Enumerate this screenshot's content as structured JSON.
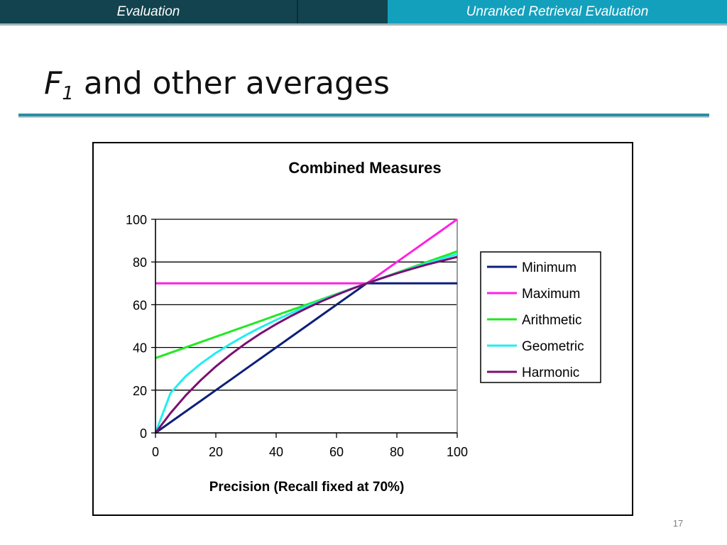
{
  "header": {
    "section": "Evaluation",
    "topic": "Unranked Retrieval Evaluation"
  },
  "slide": {
    "title_symbol": "F",
    "title_subscript": "1",
    "title_rest": " and other averages",
    "page_number": "17"
  },
  "colors": {
    "header_dark": "#12434f",
    "header_accent": "#13a0bd",
    "title_rule": "#2a8fa6"
  },
  "chart_data": {
    "type": "line",
    "title": "Combined Measures",
    "xlabel": "Precision (Recall fixed at 70%)",
    "ylabel": "",
    "xlim": [
      0,
      100
    ],
    "ylim": [
      0,
      100
    ],
    "x_ticks": [
      "0",
      "20",
      "40",
      "60",
      "80",
      "100"
    ],
    "y_ticks": [
      "0",
      "20",
      "40",
      "60",
      "80",
      "100"
    ],
    "grid": "horizontal",
    "legend_position": "right",
    "x": [
      0,
      5,
      10,
      15,
      20,
      25,
      30,
      35,
      40,
      45,
      50,
      55,
      60,
      65,
      70,
      75,
      80,
      85,
      90,
      95,
      100
    ],
    "series": [
      {
        "name": "Minimum",
        "color": "#0d1f7a",
        "values": [
          0,
          5,
          10,
          15,
          20,
          25,
          30,
          35,
          40,
          45,
          50,
          55,
          60,
          65,
          70,
          70,
          70,
          70,
          70,
          70,
          70
        ]
      },
      {
        "name": "Maximum",
        "color": "#ff22e0",
        "values": [
          70,
          70,
          70,
          70,
          70,
          70,
          70,
          70,
          70,
          70,
          70,
          70,
          70,
          70,
          70,
          75,
          80,
          85,
          90,
          95,
          100
        ]
      },
      {
        "name": "Arithmetic",
        "color": "#22e822",
        "values": [
          35,
          37.5,
          40,
          42.5,
          45,
          47.5,
          50,
          52.5,
          55,
          57.5,
          60,
          62.5,
          65,
          67.5,
          70,
          72.5,
          75,
          77.5,
          80,
          82.5,
          85
        ]
      },
      {
        "name": "Geometric",
        "color": "#22eeee",
        "values": [
          0,
          18.7,
          26.5,
          32.4,
          37.4,
          41.8,
          45.8,
          49.5,
          52.9,
          56.1,
          59.2,
          62.0,
          64.8,
          67.5,
          70,
          72.5,
          74.8,
          77.1,
          79.4,
          81.6,
          83.7
        ]
      },
      {
        "name": "Harmonic",
        "color": "#7a1070",
        "values": [
          0,
          9.3,
          17.5,
          24.7,
          31.1,
          36.8,
          42.0,
          46.7,
          50.9,
          54.8,
          58.3,
          61.6,
          64.6,
          67.4,
          70,
          72.4,
          74.7,
          76.8,
          78.8,
          80.6,
          82.4
        ]
      }
    ]
  }
}
